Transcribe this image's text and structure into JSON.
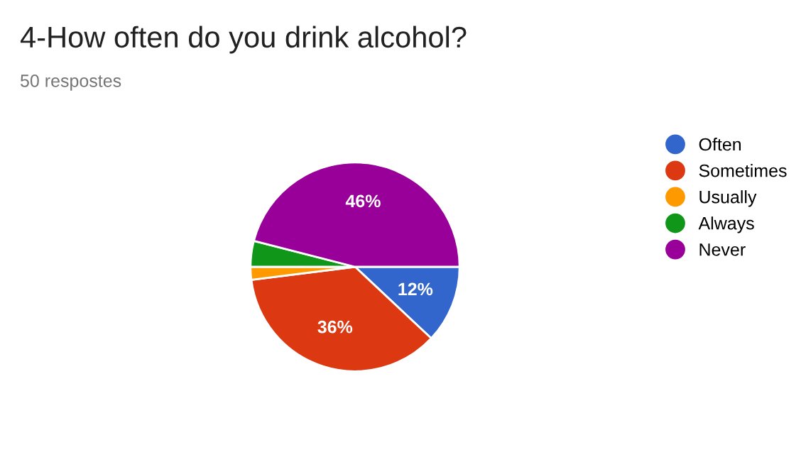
{
  "chart_data": {
    "type": "pie",
    "title": "4-How often do you drink alcohol?",
    "subtitle": "50 respostes",
    "categories": [
      "Often",
      "Sometimes",
      "Usually",
      "Always",
      "Never"
    ],
    "values": [
      12,
      36,
      2,
      4,
      46
    ],
    "colors": [
      "#3366cc",
      "#dc3912",
      "#ff9900",
      "#109618",
      "#990099"
    ],
    "value_labels": [
      "12%",
      "36%",
      null,
      null,
      "46%"
    ],
    "legend": "right"
  }
}
